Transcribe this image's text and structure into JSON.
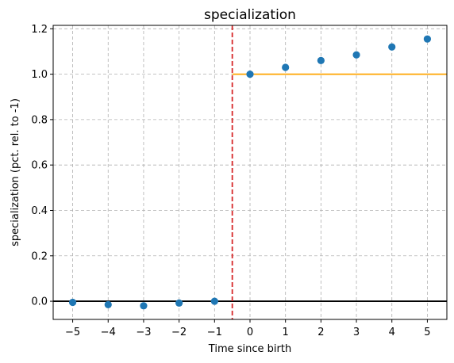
{
  "chart_data": {
    "type": "scatter",
    "title": "specialization",
    "xlabel": "Time since birth",
    "ylabel": "specialization (pct. rel. to -1)",
    "xlim": [
      -5.55,
      5.55
    ],
    "ylim": [
      -0.08,
      1.215
    ],
    "x_ticks": [
      -5,
      -4,
      -3,
      -2,
      -1,
      0,
      1,
      2,
      3,
      4,
      5
    ],
    "x_tick_labels": [
      "−5",
      "−4",
      "−3",
      "−2",
      "−1",
      "0",
      "1",
      "2",
      "3",
      "4",
      "5"
    ],
    "y_ticks": [
      0.0,
      0.2,
      0.4,
      0.6,
      0.8,
      1.0,
      1.2
    ],
    "y_tick_labels": [
      "0.0",
      "0.2",
      "0.4",
      "0.6",
      "0.8",
      "1.0",
      "1.2"
    ],
    "grid": true,
    "series": [
      {
        "x": [
          -5,
          -4,
          -3,
          -2,
          -1,
          0,
          1,
          2,
          3,
          4,
          5
        ],
        "y": [
          -0.005,
          -0.015,
          -0.02,
          -0.008,
          0.0,
          1.0,
          1.03,
          1.06,
          1.085,
          1.12,
          1.155
        ],
        "color": "#1f77b4"
      }
    ],
    "reference_lines": {
      "zero_line": {
        "y": 0.0,
        "color": "#000000"
      },
      "treatment_line": {
        "x": -0.5,
        "color": "#d62728",
        "style": "dashed"
      },
      "post_level": {
        "y": 1.0,
        "x_from": -0.5,
        "color": "#ffa500"
      }
    }
  }
}
